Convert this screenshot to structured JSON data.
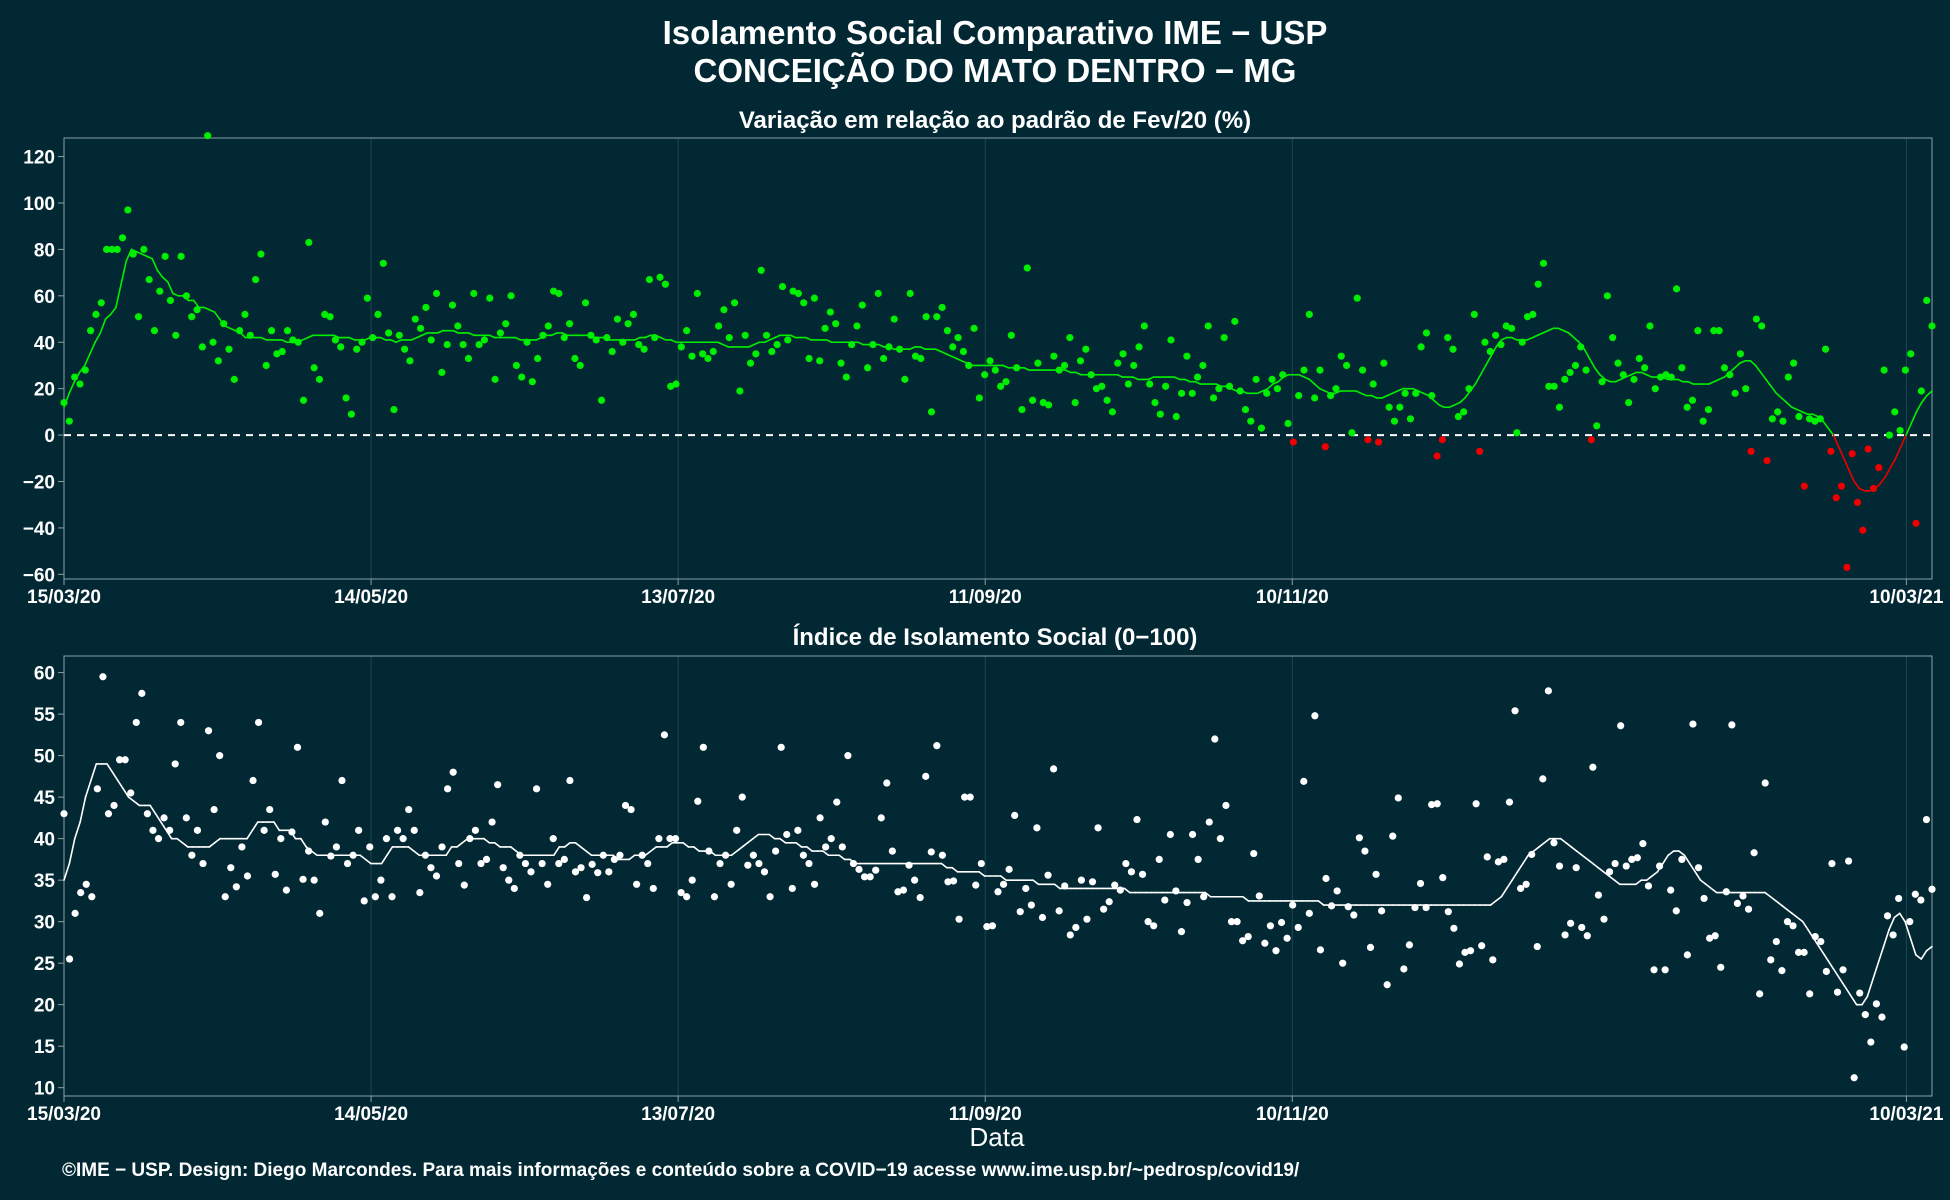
{
  "header": {
    "title_line1": "Isolamento Social Comparativo IME − USP",
    "title_line2": "CONCEIÇÃO DO MATO DENTRO − MG"
  },
  "footer": "©IME − USP. Design: Diego Marcondes. Para mais informações e conteúdo sobre a COVID−19 acesse www.ime.usp.br/~pedrosp/covid19/",
  "colors": {
    "background": "#022834",
    "positive": "#00ee00",
    "negative": "#ee0000",
    "index": "#ffffff",
    "text": "#ffffff"
  },
  "chart_data": [
    {
      "type": "scatter",
      "title": "Variação em relação ao padrão de Fev/20 (%)",
      "xlabel": "",
      "ylabel": "",
      "x_start": "15/03/20",
      "x_end": "15/03/21",
      "xticks": [
        "15/03/20",
        "14/05/20",
        "13/07/20",
        "11/09/20",
        "10/11/20",
        "10/03/21"
      ],
      "ylim": [
        -62,
        128
      ],
      "yticks": [
        -60,
        -40,
        -20,
        0,
        20,
        40,
        60,
        80,
        100,
        120
      ],
      "reference_line": 0,
      "grid": true,
      "legend": "none",
      "daily_values": [
        14,
        6,
        25,
        22,
        28,
        45,
        52,
        57,
        80,
        80,
        80,
        85,
        97,
        78,
        51,
        80,
        67,
        45,
        62,
        77,
        58,
        43,
        77,
        60,
        51,
        54,
        38,
        129,
        40,
        32,
        48,
        37,
        24,
        45,
        52,
        43,
        67,
        78,
        30,
        45,
        35,
        36,
        45,
        41,
        40,
        15,
        83,
        29,
        24,
        52,
        51,
        41,
        38,
        16,
        9,
        37,
        40,
        59,
        42,
        52,
        74,
        44,
        11,
        43,
        37,
        32,
        50,
        46,
        55,
        41,
        61,
        27,
        39,
        56,
        47,
        39,
        33,
        61,
        39,
        41,
        59,
        24,
        44,
        48,
        60,
        30,
        25,
        40,
        23,
        33,
        43,
        47,
        62,
        61,
        42,
        48,
        33,
        30,
        57,
        43,
        41,
        15,
        42,
        36,
        50,
        40,
        48,
        52,
        39,
        37,
        67,
        42,
        68,
        65,
        21,
        22,
        38,
        45,
        34,
        61,
        35,
        33,
        36,
        47,
        54,
        42,
        57,
        19,
        43,
        31,
        35,
        71,
        43,
        36,
        39,
        64,
        41,
        62,
        61,
        57,
        33,
        59,
        32,
        46,
        53,
        48,
        31,
        25,
        39,
        47,
        56,
        29,
        39,
        61,
        33,
        38,
        50,
        37,
        24,
        61,
        34,
        33,
        51,
        10,
        51,
        55,
        45,
        38,
        42,
        36,
        30,
        46,
        16,
        26,
        32,
        28,
        21,
        23,
        43,
        29,
        11,
        72,
        15,
        31,
        14,
        13,
        34,
        28,
        30,
        42,
        14,
        32,
        37,
        26,
        20,
        21,
        15,
        10,
        31,
        35,
        22,
        30,
        38,
        47,
        22,
        14,
        9,
        21,
        41,
        8,
        18,
        34,
        18,
        25,
        30,
        47,
        16,
        20,
        42,
        21,
        49,
        19,
        11,
        6,
        24,
        3,
        18,
        24,
        20,
        26,
        5,
        -3,
        17,
        28,
        52,
        16,
        28,
        -5,
        17,
        20,
        34,
        30,
        1,
        59,
        28,
        -2,
        22,
        -3,
        31,
        12,
        6,
        12,
        18,
        7,
        18,
        38,
        44,
        17,
        -9,
        -2,
        42,
        37,
        8,
        10,
        20,
        52,
        -7,
        40,
        36,
        43,
        39,
        47,
        46,
        1,
        40,
        51,
        52,
        65,
        74,
        21,
        21,
        12,
        24,
        27,
        30,
        38,
        28,
        -2,
        4,
        23,
        60,
        42,
        31,
        26,
        14,
        24,
        33,
        29,
        47,
        20,
        25,
        26,
        25,
        63,
        29,
        12,
        15,
        45,
        6,
        11,
        45,
        45,
        29,
        26,
        18,
        35,
        20,
        -7,
        50,
        47,
        -11,
        7,
        10,
        6,
        25,
        31,
        8,
        -22,
        7,
        6,
        7,
        37,
        -7,
        -27,
        -22,
        -57,
        -8,
        -29,
        -41,
        -6,
        -23,
        -14,
        28,
        0,
        10,
        2,
        28,
        35,
        -38,
        19,
        58,
        47
      ],
      "moving_average": [
        12,
        18,
        23,
        27,
        30,
        35,
        40,
        44,
        50,
        52,
        55,
        65,
        75,
        80,
        79,
        78,
        77,
        76,
        71,
        68,
        66,
        61,
        60,
        60,
        58,
        58,
        55,
        55,
        54,
        53,
        50,
        47,
        46,
        45,
        44,
        42,
        42,
        42,
        42,
        41,
        41,
        41,
        41,
        40,
        40,
        40,
        41,
        42,
        43,
        43,
        43,
        43,
        43,
        42,
        42,
        42,
        41,
        41,
        41,
        42,
        42,
        42,
        41,
        41,
        40,
        41,
        41,
        41,
        42,
        43,
        44,
        44,
        44,
        45,
        45,
        45,
        44,
        44,
        44,
        43,
        43,
        43,
        43,
        42,
        42,
        42,
        42,
        42,
        41,
        41,
        41,
        41,
        42,
        43,
        43,
        44,
        44,
        43,
        43,
        43,
        43,
        43,
        42,
        42,
        42,
        41,
        41,
        41,
        41,
        41,
        41,
        42,
        42,
        43,
        43,
        42,
        41,
        41,
        40,
        40,
        40,
        40,
        40,
        40,
        40,
        40,
        40,
        39,
        38,
        38,
        38,
        38,
        38,
        39,
        40,
        40,
        41,
        42,
        43,
        43,
        43,
        42,
        42,
        42,
        41,
        41,
        41,
        41,
        40,
        40,
        40,
        40,
        40,
        40,
        39,
        39,
        39,
        39,
        38,
        38,
        37,
        37,
        37,
        37,
        38,
        38,
        37,
        37,
        37,
        36,
        35,
        34,
        33,
        32,
        31,
        30,
        30,
        30,
        30,
        30,
        30,
        30,
        29,
        29,
        29,
        29,
        28,
        28,
        28,
        28,
        28,
        28,
        28,
        28,
        27,
        27,
        26,
        26,
        26,
        26,
        26,
        26,
        26,
        26,
        25,
        25,
        25,
        24,
        24,
        24,
        25,
        25,
        25,
        25,
        25,
        24,
        24,
        23,
        23,
        22,
        22,
        22,
        22,
        21,
        21,
        20,
        19,
        19,
        18,
        18,
        18,
        19,
        20,
        22,
        23,
        25,
        26,
        26,
        26,
        25,
        24,
        22,
        20,
        19,
        18,
        18,
        19,
        19,
        19,
        19,
        18,
        17,
        17,
        16,
        16,
        17,
        18,
        19,
        20,
        20,
        20,
        19,
        18,
        17,
        15,
        13,
        12,
        12,
        13,
        14,
        16,
        19,
        22,
        26,
        30,
        34,
        38,
        41,
        42,
        42,
        41,
        41,
        41,
        42,
        43,
        44,
        45,
        46,
        46,
        45,
        44,
        42,
        40,
        37,
        33,
        29,
        26,
        24,
        23,
        23,
        24,
        25,
        26,
        27,
        27,
        26,
        25,
        25,
        25,
        24,
        24,
        24,
        23,
        23,
        22,
        22,
        22,
        22,
        23,
        24,
        25,
        27,
        29,
        31,
        32,
        32,
        30,
        27,
        24,
        21,
        18,
        16,
        14,
        12,
        11,
        10,
        9,
        9,
        8,
        6,
        3,
        0,
        -5,
        -10,
        -15,
        -20,
        -23,
        -24,
        -24,
        -23,
        -21,
        -18,
        -14,
        -10,
        -5,
        0,
        5,
        10,
        14,
        17,
        19
      ]
    },
    {
      "type": "scatter",
      "title": "Índice de Isolamento Social (0−100)",
      "xlabel": "Data",
      "ylabel": "",
      "x_start": "15/03/20",
      "x_end": "15/03/21",
      "xticks": [
        "15/03/20",
        "14/05/20",
        "13/07/20",
        "11/09/20",
        "10/11/20",
        "10/03/21"
      ],
      "ylim": [
        9,
        62
      ],
      "yticks": [
        10,
        15,
        20,
        25,
        30,
        35,
        40,
        45,
        50,
        55,
        60
      ],
      "grid": true,
      "legend": "none",
      "daily_values": [
        43,
        25.5,
        31,
        33.5,
        34.5,
        33,
        46,
        59.5,
        43,
        44,
        49.5,
        49.5,
        45.5,
        54,
        57.5,
        43,
        41,
        40,
        42.5,
        41,
        49,
        54,
        42.5,
        38,
        41,
        37,
        53,
        43.5,
        50,
        33,
        36.5,
        34.2,
        39,
        35.5,
        47,
        54,
        41,
        43.5,
        35.7,
        40,
        33.8,
        40.8,
        51,
        35.1,
        38.5,
        35,
        31,
        42,
        37.9,
        39,
        47,
        37,
        38,
        41,
        32.5,
        39,
        33,
        35,
        40,
        33,
        41,
        40,
        43.5,
        41,
        33.5,
        38,
        36.5,
        35.5,
        39,
        46,
        48,
        37,
        34.4,
        40,
        41,
        37,
        37.5,
        42,
        46.5,
        36.5,
        35,
        34,
        38,
        37,
        36,
        46,
        37,
        34.5,
        40,
        37,
        37.5,
        47,
        36,
        36.5,
        32.9,
        36.9,
        35.9,
        38,
        36,
        37.5,
        38,
        44,
        43.5,
        34.5,
        38,
        37,
        34,
        40,
        52.5,
        40,
        40,
        33.5,
        33,
        35,
        44.5,
        51,
        38.5,
        33,
        37,
        38,
        34.5,
        41,
        45,
        36.8,
        38,
        37,
        36,
        33,
        38.5,
        51,
        40.5,
        34,
        41,
        38,
        37,
        34.5,
        42.5,
        39,
        40,
        44.4,
        39,
        50,
        37,
        36.3,
        35.4,
        35.4,
        36.2,
        42.5,
        46.7,
        38.5,
        33.6,
        33.8,
        36.8,
        35,
        32.9,
        47.5,
        38.4,
        51.2,
        38,
        34.8,
        34.9,
        30.3,
        45,
        45,
        34.4,
        37,
        29.4,
        29.5,
        33.6,
        34.5,
        36.3,
        42.8,
        31.2,
        34,
        32,
        41.3,
        30.5,
        35.6,
        48.4,
        31.3,
        34.3,
        28.4,
        29.3,
        35,
        30.3,
        34.8,
        41.3,
        31.5,
        32.4,
        34.4,
        33.8,
        37,
        36,
        42.3,
        35.7,
        30,
        29.5,
        37.5,
        32.6,
        40.5,
        33.7,
        28.8,
        32.3,
        40.5,
        37.5,
        33,
        42,
        52,
        40,
        44,
        30,
        30,
        27.7,
        28.2,
        38.2,
        33.1,
        27.4,
        29.5,
        26.5,
        29.9,
        28,
        32,
        29.3,
        46.9,
        31,
        54.8,
        26.6,
        35.2,
        31.9,
        33.7,
        25,
        31.8,
        30.8,
        40.1,
        38.5,
        26.9,
        35.7,
        31.3,
        22.4,
        40.3,
        44.9,
        24.3,
        27.2,
        31.7,
        34.6,
        31.7,
        44.1,
        44.2,
        35.3,
        31.2,
        29.2,
        24.9,
        26.3,
        26.5,
        44.2,
        27.1,
        37.8,
        25.4,
        37.2,
        37.5,
        44.4,
        55.4,
        34,
        34.5,
        38.1,
        27,
        47.2,
        57.8,
        39.5,
        36.7,
        28.4,
        29.8,
        36.5,
        29.3,
        28.3,
        48.6,
        33.2,
        30.3,
        36,
        37,
        53.6,
        36.7,
        37.5,
        37.7,
        39.4,
        34.3,
        24.2,
        36.7,
        24.2,
        33.8,
        31.3,
        37.5,
        26,
        53.8,
        36.5,
        32.8,
        28,
        28.3,
        24.5,
        33.6,
        53.7,
        32.2,
        33.1,
        31.5,
        38.3,
        21.3,
        46.7,
        25.4,
        27.6,
        24.1,
        30,
        29.5,
        26.3,
        26.3,
        21.3,
        28.2,
        27.6,
        24,
        37,
        21.5,
        24.2,
        37.3,
        11.2,
        21.4,
        18.8,
        15.5,
        20.1,
        18.5,
        30.7,
        28.4,
        32.8,
        14.9,
        30,
        33.3,
        32.6,
        42.3,
        33.9
      ],
      "moving_average": [
        35,
        37,
        40,
        42,
        45,
        47,
        49,
        49,
        49,
        48,
        47,
        46,
        45,
        44.5,
        44,
        44,
        44,
        43,
        42,
        41,
        40,
        40,
        39.5,
        39,
        39,
        39,
        39,
        39,
        39.5,
        40,
        40,
        40,
        40,
        40,
        40,
        41,
        42,
        42,
        42,
        42,
        41,
        41,
        41,
        40,
        40,
        39,
        38.5,
        38,
        38,
        38,
        38,
        38,
        38,
        38,
        38,
        38,
        37.5,
        37,
        37,
        37,
        38,
        39,
        39,
        39,
        39,
        38.5,
        38,
        38,
        38,
        38,
        38,
        38,
        39,
        39,
        39.5,
        40,
        40,
        40,
        40,
        39.5,
        39.5,
        39,
        39,
        39,
        38.5,
        38,
        38,
        38,
        38,
        38,
        38,
        38,
        39,
        39,
        39.5,
        39.5,
        39,
        38.5,
        38,
        38,
        38,
        38,
        38,
        37.5,
        37.5,
        37.5,
        38,
        38,
        38,
        38.5,
        39,
        39,
        39,
        39.5,
        39.5,
        39.5,
        39,
        39,
        38.5,
        38.5,
        38.5,
        38,
        38,
        38,
        38,
        38.5,
        39,
        39.5,
        40,
        40.5,
        40.5,
        40.5,
        40,
        40,
        39.5,
        39.5,
        39.5,
        39,
        39,
        38.5,
        38.5,
        38.5,
        38,
        38,
        38,
        37.5,
        37.5,
        37,
        37,
        37,
        37,
        37,
        37,
        37,
        37,
        37,
        37,
        37,
        37,
        37,
        37,
        37,
        37,
        37,
        36.5,
        36.5,
        36,
        36,
        36,
        36,
        36,
        35.5,
        35.5,
        35.5,
        35.5,
        35,
        35,
        35,
        35,
        35,
        35,
        34.5,
        34.5,
        34.5,
        34.5,
        34,
        34,
        34,
        34,
        34,
        34,
        34,
        34,
        34,
        34,
        34,
        34,
        34,
        33.5,
        33.5,
        33.5,
        33.5,
        33.5,
        33.5,
        33.5,
        33.5,
        33.5,
        33.5,
        33.5,
        33.5,
        33.5,
        33.5,
        33.5,
        33,
        33,
        33,
        33,
        33,
        33,
        33,
        32.5,
        32.5,
        32.5,
        32.5,
        32.5,
        32.5,
        32.5,
        32.5,
        32.5,
        32.5,
        32.5,
        32.5,
        32.5,
        32.5,
        32,
        32,
        32,
        32,
        32,
        32,
        32,
        32,
        32,
        32,
        32,
        32,
        32,
        32,
        32,
        32,
        32,
        32,
        32,
        32,
        32,
        32,
        32,
        32,
        32,
        32,
        32,
        32,
        32,
        32,
        32,
        32,
        32.5,
        33,
        34,
        35,
        36,
        37,
        38,
        38.5,
        39,
        39.5,
        40,
        40,
        40,
        39.5,
        39,
        38.5,
        38,
        37.5,
        37,
        36.5,
        36,
        35.5,
        35,
        34.5,
        34.5,
        34.5,
        34.5,
        35,
        35,
        35.5,
        36,
        37,
        38,
        38.5,
        38.5,
        38,
        37,
        36,
        35,
        34.5,
        34,
        33.5,
        33.5,
        33.5,
        33.5,
        33.5,
        33.5,
        33.5,
        33.5,
        33.5,
        33.5,
        33,
        32.5,
        32,
        31.5,
        31,
        30.5,
        30,
        29,
        28,
        27,
        26,
        25,
        24,
        23,
        22,
        21,
        20,
        20,
        21,
        23,
        25,
        27,
        29,
        30.5,
        31,
        30,
        28,
        26,
        25.5,
        26.5,
        27
      ]
    }
  ]
}
